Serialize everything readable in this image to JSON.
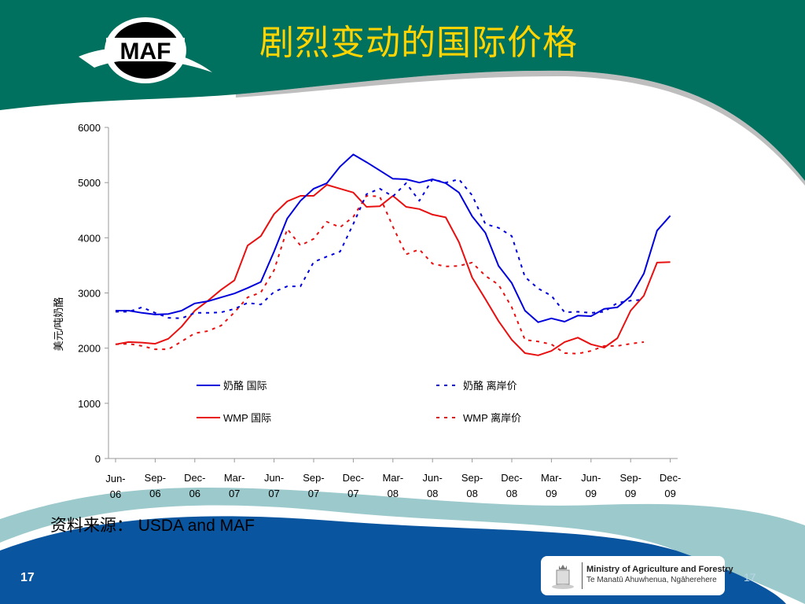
{
  "slide": {
    "title": "剧烈变动的国际价格",
    "logo_text": "MAF",
    "source_label": "资料来源：",
    "source_text": "USDA and MAF",
    "page_number_left": "17",
    "page_number_right": "17",
    "ministry_line1": "Ministry of Agriculture and Forestry",
    "ministry_line2": "Te Manatū Ahuwhenua, Ngāherehere"
  },
  "colors": {
    "header": "#00705f",
    "title": "#ffd400",
    "footer": "#0a55a0",
    "stripe": "#9cc9cc",
    "blue": "#0000dd",
    "red": "#e81010"
  },
  "chart_data": {
    "type": "line",
    "title": "",
    "xlabel": "",
    "ylabel": "美元/吨奶酪",
    "ylim": [
      0,
      6000
    ],
    "yticks": [
      "0",
      "1000",
      "2000",
      "3000",
      "4000",
      "5000",
      "6000"
    ],
    "ytick_values": [
      0,
      1000,
      2000,
      3000,
      4000,
      5000,
      6000
    ],
    "x_tick_labels": [
      [
        "Jun-",
        "06"
      ],
      [
        "Sep-",
        "06"
      ],
      [
        "Dec-",
        "06"
      ],
      [
        "Mar-",
        "07"
      ],
      [
        "Jun-",
        "07"
      ],
      [
        "Sep-",
        "07"
      ],
      [
        "Dec-",
        "07"
      ],
      [
        "Mar-",
        "08"
      ],
      [
        "Jun-",
        "08"
      ],
      [
        "Sep-",
        "08"
      ],
      [
        "Dec-",
        "08"
      ],
      [
        "Mar-",
        "09"
      ],
      [
        "Jun-",
        "09"
      ],
      [
        "Sep-",
        "09"
      ],
      [
        "Dec-",
        "09"
      ]
    ],
    "x_start": "Jun-06",
    "x_interval": "monthly",
    "grid": false,
    "legend_placement": "inside-bottom",
    "series": [
      {
        "name": "奶酪  国际",
        "color": "#0000dd",
        "dash": false,
        "values": [
          2680,
          2680,
          2640,
          2610,
          2620,
          2680,
          2810,
          2850,
          2920,
          2990,
          3090,
          3200,
          3750,
          4350,
          4670,
          4890,
          4990,
          5290,
          5510,
          5370,
          5220,
          5070,
          5060,
          5000,
          5060,
          4990,
          4820,
          4390,
          4090,
          3490,
          3180,
          2680,
          2470,
          2540,
          2480,
          2590,
          2580,
          2710,
          2740,
          2940,
          3350,
          4130,
          4400
        ]
      },
      {
        "name": "奶酪 离岸价",
        "color": "#0000dd",
        "dash": true,
        "values": [
          2660,
          2660,
          2740,
          2640,
          2550,
          2540,
          2640,
          2640,
          2650,
          2710,
          2820,
          2790,
          3020,
          3120,
          3120,
          3560,
          3660,
          3750,
          4250,
          4790,
          4890,
          4750,
          4990,
          4670,
          5060,
          5000,
          5060,
          4770,
          4250,
          4180,
          4030,
          3290,
          3080,
          2950,
          2650,
          2660,
          2640,
          2660,
          2820,
          2860,
          2880
        ]
      },
      {
        "name": "WMP  国际",
        "color": "#e81010",
        "dash": false,
        "values": [
          2070,
          2110,
          2100,
          2080,
          2170,
          2390,
          2680,
          2860,
          3060,
          3230,
          3860,
          4030,
          4430,
          4660,
          4760,
          4760,
          4960,
          4890,
          4820,
          4560,
          4570,
          4760,
          4560,
          4520,
          4420,
          4370,
          3920,
          3280,
          2890,
          2490,
          2150,
          1910,
          1870,
          1950,
          2110,
          2190,
          2070,
          2010,
          2180,
          2680,
          2950,
          3550,
          3560
        ]
      },
      {
        "name": "WMP 离岸价",
        "color": "#e81010",
        "dash": true,
        "values": [
          2070,
          2080,
          2040,
          1980,
          1980,
          2120,
          2270,
          2310,
          2410,
          2650,
          2920,
          3010,
          3410,
          4160,
          3860,
          3980,
          4290,
          4190,
          4380,
          4760,
          4750,
          4200,
          3700,
          3790,
          3530,
          3480,
          3490,
          3550,
          3310,
          3150,
          2740,
          2150,
          2120,
          2070,
          1910,
          1900,
          1950,
          2040,
          2040,
          2080,
          2110
        ]
      }
    ]
  }
}
